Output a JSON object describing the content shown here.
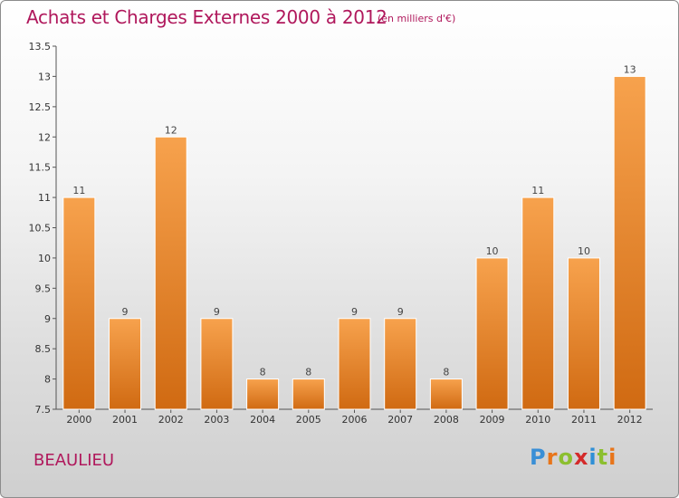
{
  "title": "Achats et Charges Externes 2000 à 2012",
  "subtitle": "(en milliers d'€)",
  "city": "BEAULIEU",
  "logo": [
    "P",
    "r",
    "o",
    "x",
    "i",
    "t",
    "i"
  ],
  "colors": {
    "title": "#b0185c",
    "bar_top": "#f7a24d",
    "bar_bottom": "#d06a12"
  },
  "chart_data": {
    "type": "bar",
    "categories": [
      "2000",
      "2001",
      "2002",
      "2003",
      "2004",
      "2005",
      "2006",
      "2007",
      "2008",
      "2009",
      "2010",
      "2011",
      "2012"
    ],
    "values": [
      11,
      9,
      12,
      9,
      8,
      8,
      9,
      9,
      8,
      10,
      11,
      10,
      13
    ],
    "data_labels": [
      "11",
      "9",
      "12",
      "9",
      "8",
      "8",
      "9",
      "9",
      "8",
      "10",
      "11",
      "10",
      "13"
    ],
    "ylim": [
      7.5,
      13.5
    ],
    "yticks": [
      7.5,
      8,
      8.5,
      9,
      9.5,
      10,
      10.5,
      11,
      11.5,
      12,
      12.5,
      13,
      13.5
    ],
    "ytick_labels": [
      "7.5",
      "8",
      "8.5",
      "9",
      "9.5",
      "10",
      "10.5",
      "11",
      "11.5",
      "12",
      "12.5",
      "13",
      "13.5"
    ],
    "grid": false,
    "legend": "none"
  }
}
